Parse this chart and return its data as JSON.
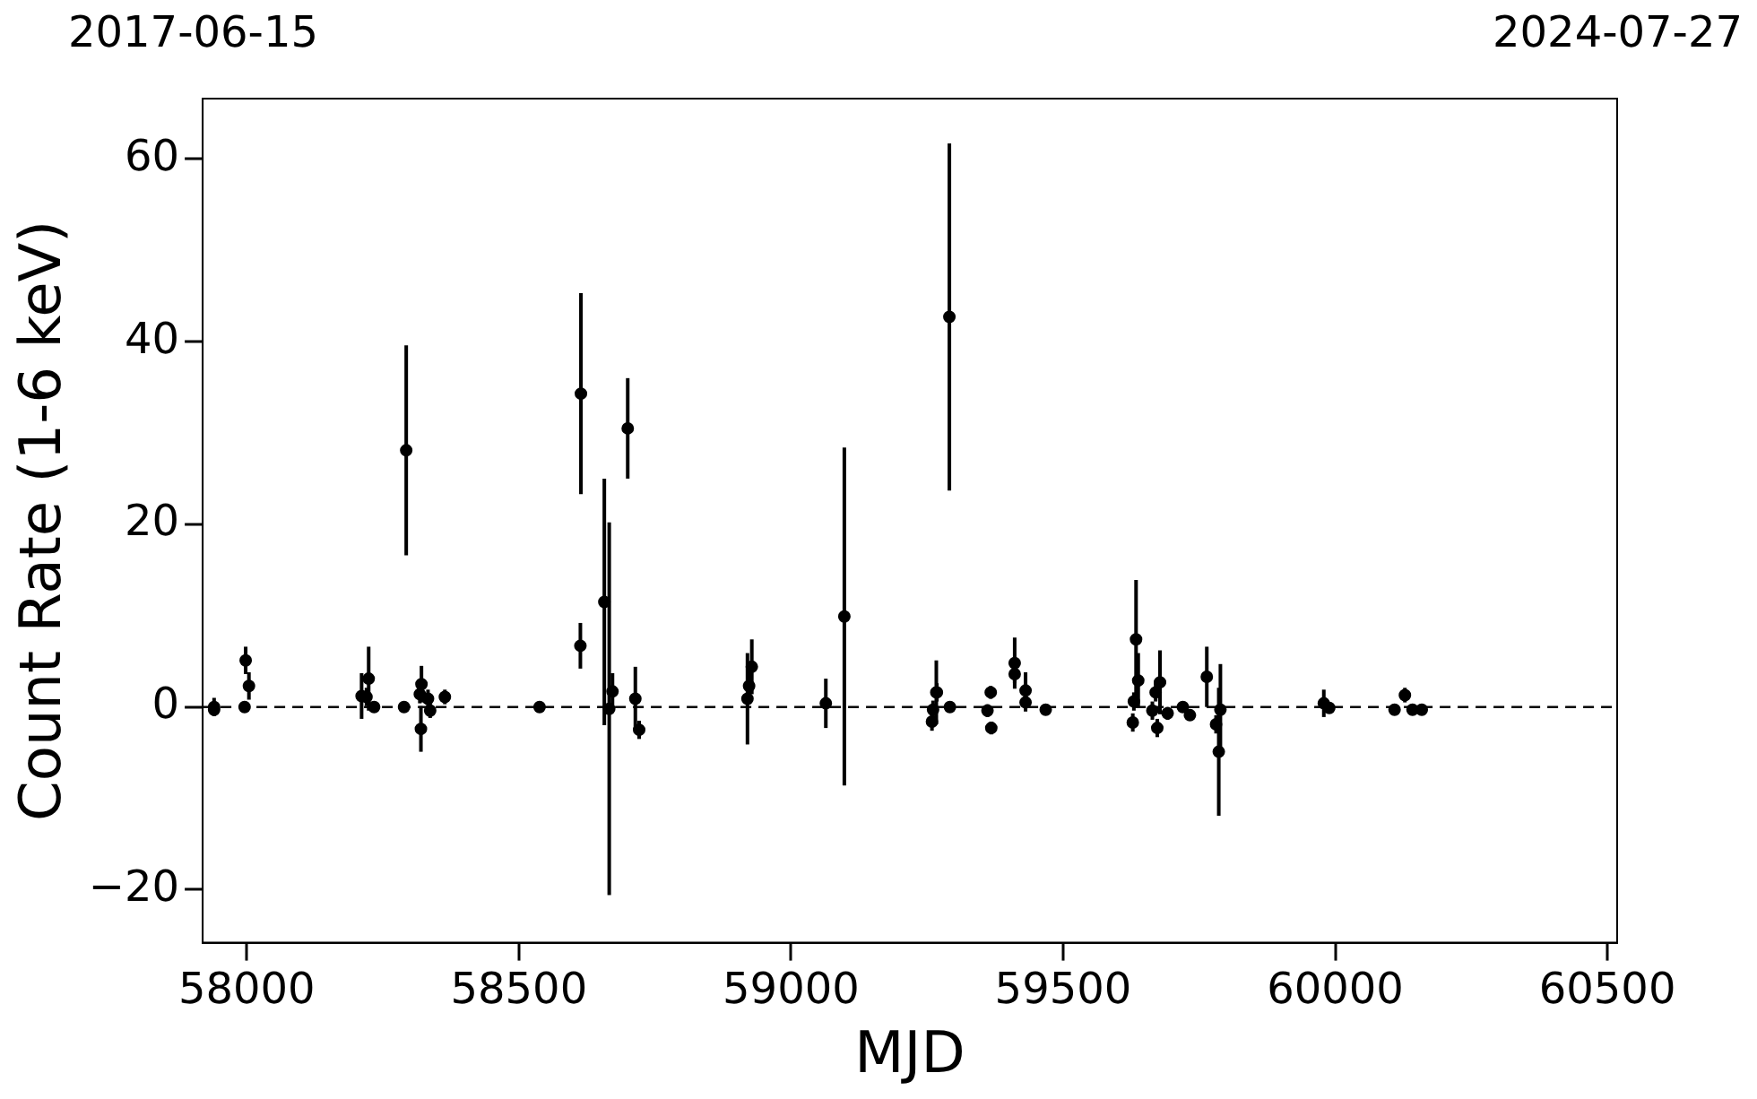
{
  "chart_data": {
    "type": "scatter",
    "xlabel": "MJD",
    "ylabel": "Count Rate (1-6 keV)",
    "annotations": [
      "2017-06-15",
      "2024-07-27"
    ],
    "x": [
      57940,
      57940,
      57996,
      57998,
      58004,
      58211,
      58220,
      58224,
      58234,
      58289,
      58293,
      58321,
      58320,
      58318,
      58333,
      58337,
      58364,
      58538,
      58614,
      58613,
      58657,
      58666,
      58672,
      58700,
      58714,
      58721,
      58920,
      58923,
      58928,
      59064,
      59098,
      59267,
      59261,
      59268,
      59259,
      59291,
      59292,
      59367,
      59368,
      59361,
      59411,
      59411,
      59431,
      59431,
      59468,
      59634,
      59638,
      59628,
      59630,
      59678,
      59670,
      59673,
      59664,
      59692,
      59720,
      59733,
      59764,
      59789,
      59781,
      59786,
      59979,
      59989,
      60109,
      60128,
      60142,
      60159
    ],
    "values": [
      0,
      -0.3,
      0,
      5.1,
      2.3,
      1.2,
      1.1,
      3.1,
      0,
      0,
      28.1,
      2.5,
      -2.4,
      1.4,
      0.9,
      -0.4,
      1.1,
      0,
      34.3,
      6.7,
      11.5,
      -0.2,
      1.7,
      30.5,
      0.9,
      -2.5,
      0.9,
      2.3,
      4.4,
      0.4,
      9.9,
      1.6,
      -0.3,
      1.6,
      -1.6,
      42.7,
      0,
      1.6,
      -2.3,
      -0.4,
      4.8,
      3.6,
      1.8,
      0.5,
      -0.3,
      7.4,
      2.9,
      -1.7,
      0.6,
      2.7,
      1.6,
      -2.3,
      -0.4,
      -0.7,
      0,
      -0.9,
      3.3,
      -0.3,
      -1.9,
      -4.9,
      0.4,
      -0.1,
      -0.3,
      1.3,
      -0.3,
      -0.3
    ],
    "errors": [
      1,
      0.5,
      0.4,
      1.5,
      1.5,
      2.5,
      1,
      3.5,
      0.4,
      0.4,
      11.5,
      2,
      2.5,
      1,
      1,
      0.8,
      0.8,
      0.3,
      11,
      2.5,
      13.5,
      20.4,
      2,
      5.5,
      3.5,
      1,
      5,
      2,
      3,
      2.7,
      18.5,
      3.5,
      1,
      1,
      1,
      19,
      0.4,
      0.7,
      0.7,
      0.7,
      2.8,
      1,
      2,
      1,
      0.5,
      6.5,
      3,
      1,
      1,
      3.5,
      1,
      1,
      1,
      0.7,
      0.5,
      0.5,
      3.3,
      5,
      1,
      7,
      1.5,
      0.5,
      0.4,
      0.8,
      0.4,
      0.4
    ],
    "color": "#000000",
    "marker": "circle",
    "grid": false,
    "legend": false,
    "xlim": [
      57919,
      60518
    ],
    "xticks": [
      58000,
      58500,
      59000,
      59500,
      60000,
      60500
    ],
    "ylim": [
      -25.8,
      66.6
    ],
    "yticks": [
      {
        "value": -20,
        "label": "−20"
      },
      0,
      20,
      40,
      60
    ],
    "ref_lines": [
      {
        "axis": "y",
        "value": 0,
        "color": "#000000",
        "line_style": "dashed"
      }
    ]
  }
}
